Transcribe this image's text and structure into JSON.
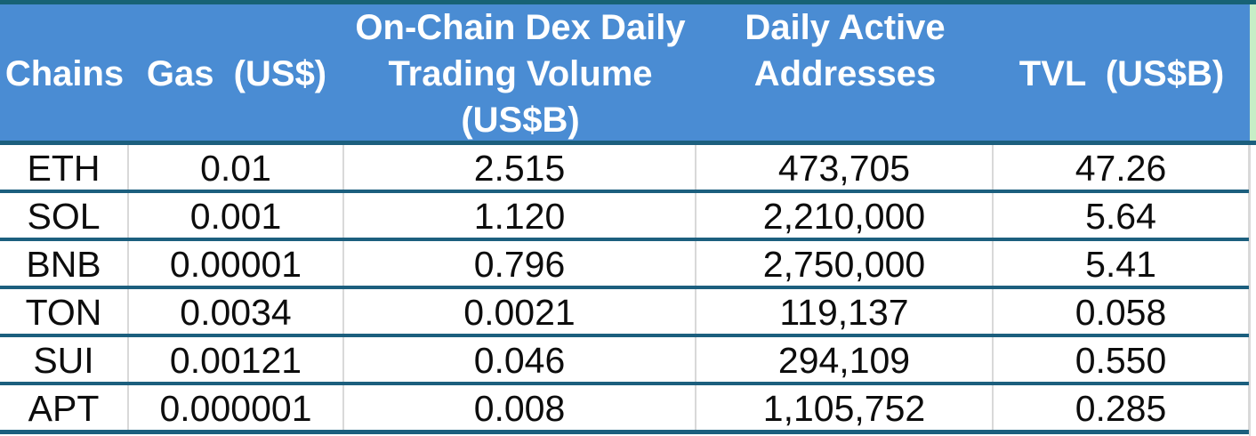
{
  "colors": {
    "header_bg": "#4a8cd3",
    "header_text": "#ffffff",
    "top_border": "#176275",
    "row_line": "#1c5f7e",
    "cell_line": "#d9d9d9",
    "side_strip": "#c6eec6",
    "body_text": "#0d0d0d"
  },
  "chart_data": {
    "type": "table",
    "columns": [
      "Chains",
      "Gas (US$)",
      "On-Chain Dex Daily Trading Volume (US$B)",
      "Daily Active Addresses",
      "TVL (US$B)"
    ],
    "header_lines": {
      "chains": "Chains",
      "gas": "Gas  (US$)",
      "volume": [
        "On-Chain Dex Daily",
        "Trading Volume",
        "(US$B)"
      ],
      "addresses": [
        "Daily Active",
        "Addresses"
      ],
      "tvl": "TVL  (US$B)"
    },
    "rows": [
      [
        "ETH",
        "0.01",
        "2.515",
        "473,705",
        "47.26"
      ],
      [
        "SOL",
        "0.001",
        "1.120",
        "2,210,000",
        "5.64"
      ],
      [
        "BNB",
        "0.00001",
        "0.796",
        "2,750,000",
        "5.41"
      ],
      [
        "TON",
        "0.0034",
        "0.0021",
        "119,137",
        "0.058"
      ],
      [
        "SUI",
        "0.00121",
        "0.046",
        "294,109",
        "0.550"
      ],
      [
        "APT",
        "0.000001",
        "0.008",
        "1,105,752",
        "0.285"
      ]
    ]
  }
}
